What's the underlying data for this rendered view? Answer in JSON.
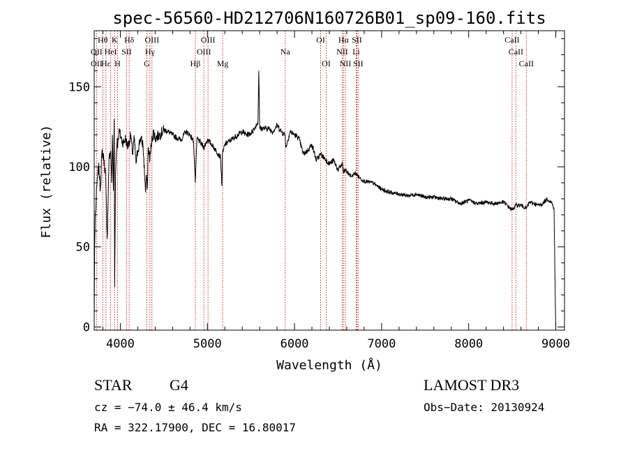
{
  "chart_data": {
    "type": "line",
    "title": "spec-56560-HD212706N160726B01_sp09-160.fits",
    "xlabel": "Wavelength (Å)",
    "ylabel": "Flux (relative)",
    "xlim": [
      3700,
      9100
    ],
    "ylim": [
      -2,
      185
    ],
    "xticks": [
      4000,
      5000,
      6000,
      7000,
      8000,
      9000
    ],
    "yticks": [
      0,
      50,
      100,
      150
    ],
    "series": [
      {
        "name": "flux",
        "x": [
          3700,
          3705,
          3712,
          3720,
          3730,
          3740,
          3755,
          3770,
          3790,
          3810,
          3830,
          3850,
          3870,
          3890,
          3900,
          3910,
          3920,
          3930,
          3935,
          3945,
          3955,
          3965,
          3970,
          3975,
          3985,
          4000,
          4020,
          4040,
          4060,
          4080,
          4100,
          4120,
          4140,
          4160,
          4180,
          4200,
          4230,
          4260,
          4290,
          4300,
          4310,
          4320,
          4340,
          4360,
          4380,
          4400,
          4450,
          4500,
          4550,
          4600,
          4650,
          4700,
          4750,
          4800,
          4840,
          4861,
          4880,
          4920,
          4960,
          5000,
          5050,
          5100,
          5150,
          5167,
          5172,
          5183,
          5200,
          5250,
          5300,
          5350,
          5400,
          5450,
          5500,
          5550,
          5580,
          5590,
          5600,
          5650,
          5700,
          5750,
          5800,
          5850,
          5893,
          5900,
          5950,
          6000,
          6050,
          6100,
          6150,
          6200,
          6250,
          6300,
          6350,
          6400,
          6450,
          6500,
          6550,
          6563,
          6580,
          6650,
          6700,
          6750,
          6800,
          6900,
          7000,
          7100,
          7200,
          7300,
          7400,
          7500,
          7600,
          7700,
          7800,
          7900,
          8000,
          8100,
          8200,
          8300,
          8400,
          8498,
          8542,
          8600,
          8662,
          8700,
          8800,
          8850,
          8900,
          8950,
          8980,
          8995,
          9000
        ],
        "values": [
          0,
          50,
          70,
          75,
          88,
          95,
          100,
          85,
          110,
          105,
          95,
          55,
          105,
          110,
          90,
          120,
          85,
          130,
          25,
          95,
          110,
          118,
          112,
          118,
          122,
          120,
          116,
          115,
          118,
          113,
          115,
          120,
          108,
          118,
          102,
          110,
          118,
          114,
          84,
          95,
          86,
          112,
          105,
          116,
          122,
          118,
          120,
          123,
          122,
          120,
          118,
          117,
          122,
          120,
          116,
          90,
          118,
          115,
          112,
          117,
          114,
          110,
          106,
          88,
          108,
          110,
          114,
          116,
          118,
          120,
          122,
          120,
          121,
          125,
          128,
          160,
          124,
          124,
          124,
          122,
          126,
          122,
          120,
          112,
          122,
          120,
          118,
          108,
          110,
          114,
          104,
          108,
          105,
          102,
          104,
          98,
          102,
          96,
          98,
          94,
          96,
          93,
          91,
          90,
          86,
          84,
          83,
          82,
          83,
          81,
          81,
          80,
          80,
          77,
          79,
          77,
          78,
          77,
          78,
          73,
          76,
          76,
          74,
          78,
          76,
          77,
          80,
          78,
          74,
          14,
          0
        ]
      }
    ],
    "line_labels": [
      {
        "text": "Hθ",
        "x": 3798,
        "row": 0
      },
      {
        "text": "K",
        "x": 3934,
        "row": 0
      },
      {
        "text": "Hδ",
        "x": 4102,
        "row": 0
      },
      {
        "text": "OIII",
        "x": 4363,
        "row": 0
      },
      {
        "text": "OIII",
        "x": 5007,
        "row": 0
      },
      {
        "text": "OI",
        "x": 6300,
        "row": 0
      },
      {
        "text": "Hα",
        "x": 6563,
        "row": 0
      },
      {
        "text": "SII",
        "x": 6716,
        "row": 0
      },
      {
        "text": "CaII",
        "x": 8498,
        "row": 0
      },
      {
        "text": "OII",
        "x": 3727,
        "row": 1
      },
      {
        "text": "HeI",
        "x": 3889,
        "row": 1
      },
      {
        "text": "SII",
        "x": 4072,
        "row": 1
      },
      {
        "text": "Hγ",
        "x": 4340,
        "row": 1
      },
      {
        "text": "OIII",
        "x": 4959,
        "row": 1
      },
      {
        "text": "Na",
        "x": 5893,
        "row": 1
      },
      {
        "text": "NII",
        "x": 6548,
        "row": 1
      },
      {
        "text": "Li",
        "x": 6708,
        "row": 1
      },
      {
        "text": "CaII",
        "x": 8542,
        "row": 1
      },
      {
        "text": "OII",
        "x": 3727,
        "row": 2
      },
      {
        "text": "Hε",
        "x": 3835,
        "row": 2
      },
      {
        "text": "H",
        "x": 3968,
        "row": 2
      },
      {
        "text": "G",
        "x": 4305,
        "row": 2
      },
      {
        "text": "Hβ",
        "x": 4861,
        "row": 2
      },
      {
        "text": "Mg",
        "x": 5175,
        "row": 2
      },
      {
        "text": "OI",
        "x": 6364,
        "row": 2
      },
      {
        "text": "NII",
        "x": 6584,
        "row": 2
      },
      {
        "text": "SII",
        "x": 6731,
        "row": 2
      },
      {
        "text": "CaII",
        "x": 8662,
        "row": 2
      }
    ],
    "line_markers": [
      3727,
      3798,
      3835,
      3889,
      3934,
      3968,
      4072,
      4102,
      4305,
      4340,
      4363,
      4861,
      4959,
      5007,
      5175,
      5893,
      6300,
      6364,
      6548,
      6563,
      6584,
      6708,
      6716,
      6731,
      8498,
      8542,
      8662
    ],
    "colors": {
      "line": "#000000",
      "markers": "#cc2222",
      "axes": "#000000"
    }
  },
  "info": {
    "obj_class": "STAR",
    "subclass": "G4",
    "survey": "LAMOST DR3",
    "cz": "cz = −74.0 ± 46.4 km/s",
    "obs_date": "Obs−Date: 20130924",
    "radec": "RA = 322.17900, DEC =  16.80017"
  }
}
